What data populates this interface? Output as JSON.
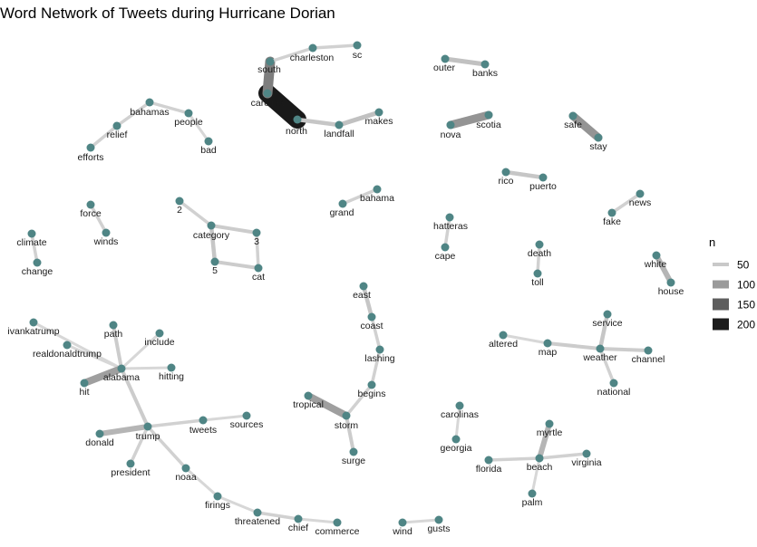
{
  "title": "Word Network of Tweets during Hurricane Dorian",
  "legend": {
    "title": "n",
    "items": [
      {
        "label": "50",
        "value": 50,
        "color": "#c9c9c9"
      },
      {
        "label": "100",
        "value": 100,
        "color": "#9a9a9a"
      },
      {
        "label": "150",
        "value": 150,
        "color": "#5e5e5e"
      },
      {
        "label": "200",
        "value": 200,
        "color": "#1c1c1c"
      }
    ]
  },
  "colors": {
    "node": "#4f8585",
    "text": "#1a1a1a"
  },
  "nodes": [
    {
      "id": "south",
      "label": "south"
    },
    {
      "id": "charleston",
      "label": "charleston"
    },
    {
      "id": "sc",
      "label": "sc"
    },
    {
      "id": "carolina",
      "label": "carolina"
    },
    {
      "id": "north",
      "label": "north"
    },
    {
      "id": "landfall",
      "label": "landfall"
    },
    {
      "id": "makes",
      "label": "makes"
    },
    {
      "id": "outer",
      "label": "outer"
    },
    {
      "id": "banks",
      "label": "banks"
    },
    {
      "id": "nova",
      "label": "nova"
    },
    {
      "id": "scotia",
      "label": "scotia"
    },
    {
      "id": "safe",
      "label": "safe"
    },
    {
      "id": "stay",
      "label": "stay"
    },
    {
      "id": "bahamas",
      "label": "bahamas"
    },
    {
      "id": "people",
      "label": "people"
    },
    {
      "id": "bad",
      "label": "bad"
    },
    {
      "id": "relief",
      "label": "relief"
    },
    {
      "id": "efforts",
      "label": "efforts"
    },
    {
      "id": "rico",
      "label": "rico"
    },
    {
      "id": "puerto",
      "label": "puerto"
    },
    {
      "id": "news",
      "label": "news"
    },
    {
      "id": "fake",
      "label": "fake"
    },
    {
      "id": "bahama",
      "label": "bahama"
    },
    {
      "id": "grand",
      "label": "grand"
    },
    {
      "id": "force",
      "label": "force"
    },
    {
      "id": "winds",
      "label": "winds"
    },
    {
      "id": "2",
      "label": "2"
    },
    {
      "id": "category",
      "label": "category"
    },
    {
      "id": "3",
      "label": "3"
    },
    {
      "id": "5",
      "label": "5"
    },
    {
      "id": "cat",
      "label": "cat"
    },
    {
      "id": "climate",
      "label": "climate"
    },
    {
      "id": "change",
      "label": "change"
    },
    {
      "id": "hatteras",
      "label": "hatteras"
    },
    {
      "id": "cape",
      "label": "cape"
    },
    {
      "id": "death",
      "label": "death"
    },
    {
      "id": "toll",
      "label": "toll"
    },
    {
      "id": "white",
      "label": "white"
    },
    {
      "id": "house",
      "label": "house"
    },
    {
      "id": "east",
      "label": "east"
    },
    {
      "id": "coast",
      "label": "coast"
    },
    {
      "id": "lashing",
      "label": "lashing"
    },
    {
      "id": "begins",
      "label": "begins"
    },
    {
      "id": "tropical",
      "label": "tropical"
    },
    {
      "id": "storm",
      "label": "storm"
    },
    {
      "id": "surge",
      "label": "surge"
    },
    {
      "id": "ivankatrump",
      "label": "ivankatrump"
    },
    {
      "id": "realdonaldtrump",
      "label": "realdonaldtrump"
    },
    {
      "id": "path",
      "label": "path"
    },
    {
      "id": "include",
      "label": "include"
    },
    {
      "id": "alabama",
      "label": "alabama"
    },
    {
      "id": "hitting",
      "label": "hitting"
    },
    {
      "id": "hit",
      "label": "hit"
    },
    {
      "id": "trump",
      "label": "trump"
    },
    {
      "id": "tweets",
      "label": "tweets"
    },
    {
      "id": "sources",
      "label": "sources"
    },
    {
      "id": "donald",
      "label": "donald"
    },
    {
      "id": "president",
      "label": "president"
    },
    {
      "id": "noaa",
      "label": "noaa"
    },
    {
      "id": "firings",
      "label": "firings"
    },
    {
      "id": "threatened",
      "label": "threatened"
    },
    {
      "id": "chief",
      "label": "chief"
    },
    {
      "id": "commerce",
      "label": "commerce"
    },
    {
      "id": "wind",
      "label": "wind"
    },
    {
      "id": "gusts",
      "label": "gusts"
    },
    {
      "id": "service",
      "label": "service"
    },
    {
      "id": "altered",
      "label": "altered"
    },
    {
      "id": "map",
      "label": "map"
    },
    {
      "id": "weather",
      "label": "weather"
    },
    {
      "id": "channel",
      "label": "channel"
    },
    {
      "id": "national",
      "label": "national"
    },
    {
      "id": "carolinas",
      "label": "carolinas"
    },
    {
      "id": "georgia",
      "label": "georgia"
    },
    {
      "id": "myrtle",
      "label": "myrtle"
    },
    {
      "id": "florida",
      "label": "florida"
    },
    {
      "id": "beach",
      "label": "beach"
    },
    {
      "id": "virginia",
      "label": "virginia"
    },
    {
      "id": "palm",
      "label": "palm"
    }
  ],
  "edges": [
    {
      "from": "carolina",
      "to": "north",
      "n": 210
    },
    {
      "from": "south",
      "to": "carolina",
      "n": 120
    },
    {
      "from": "south",
      "to": "charleston",
      "n": 45
    },
    {
      "from": "charleston",
      "to": "sc",
      "n": 45
    },
    {
      "from": "north",
      "to": "landfall",
      "n": 55
    },
    {
      "from": "landfall",
      "to": "makes",
      "n": 60
    },
    {
      "from": "outer",
      "to": "banks",
      "n": 60
    },
    {
      "from": "nova",
      "to": "scotia",
      "n": 100
    },
    {
      "from": "safe",
      "to": "stay",
      "n": 100
    },
    {
      "from": "bahamas",
      "to": "people",
      "n": 45
    },
    {
      "from": "people",
      "to": "bad",
      "n": 40
    },
    {
      "from": "bahamas",
      "to": "relief",
      "n": 45
    },
    {
      "from": "relief",
      "to": "efforts",
      "n": 45
    },
    {
      "from": "rico",
      "to": "puerto",
      "n": 55
    },
    {
      "from": "news",
      "to": "fake",
      "n": 45
    },
    {
      "from": "bahama",
      "to": "grand",
      "n": 45
    },
    {
      "from": "force",
      "to": "winds",
      "n": 45
    },
    {
      "from": "2",
      "to": "category",
      "n": 45
    },
    {
      "from": "category",
      "to": "3",
      "n": 50
    },
    {
      "from": "category",
      "to": "5",
      "n": 55
    },
    {
      "from": "3",
      "to": "cat",
      "n": 45
    },
    {
      "from": "5",
      "to": "cat",
      "n": 50
    },
    {
      "from": "climate",
      "to": "change",
      "n": 45
    },
    {
      "from": "hatteras",
      "to": "cape",
      "n": 45
    },
    {
      "from": "death",
      "to": "toll",
      "n": 45
    },
    {
      "from": "white",
      "to": "house",
      "n": 70
    },
    {
      "from": "east",
      "to": "coast",
      "n": 55
    },
    {
      "from": "coast",
      "to": "lashing",
      "n": 45
    },
    {
      "from": "lashing",
      "to": "begins",
      "n": 45
    },
    {
      "from": "begins",
      "to": "storm",
      "n": 45
    },
    {
      "from": "tropical",
      "to": "storm",
      "n": 90
    },
    {
      "from": "storm",
      "to": "surge",
      "n": 50
    },
    {
      "from": "ivankatrump",
      "to": "alabama",
      "n": 40
    },
    {
      "from": "realdonaldtrump",
      "to": "alabama",
      "n": 40
    },
    {
      "from": "path",
      "to": "alabama",
      "n": 50
    },
    {
      "from": "include",
      "to": "alabama",
      "n": 40
    },
    {
      "from": "alabama",
      "to": "hitting",
      "n": 40
    },
    {
      "from": "hit",
      "to": "alabama",
      "n": 90
    },
    {
      "from": "alabama",
      "to": "trump",
      "n": 50
    },
    {
      "from": "trump",
      "to": "tweets",
      "n": 45
    },
    {
      "from": "tweets",
      "to": "sources",
      "n": 40
    },
    {
      "from": "donald",
      "to": "trump",
      "n": 70
    },
    {
      "from": "president",
      "to": "trump",
      "n": 45
    },
    {
      "from": "trump",
      "to": "noaa",
      "n": 45
    },
    {
      "from": "noaa",
      "to": "firings",
      "n": 40
    },
    {
      "from": "firings",
      "to": "threatened",
      "n": 40
    },
    {
      "from": "threatened",
      "to": "chief",
      "n": 45
    },
    {
      "from": "chief",
      "to": "commerce",
      "n": 40
    },
    {
      "from": "wind",
      "to": "gusts",
      "n": 40
    },
    {
      "from": "service",
      "to": "weather",
      "n": 55
    },
    {
      "from": "altered",
      "to": "map",
      "n": 40
    },
    {
      "from": "map",
      "to": "weather",
      "n": 50
    },
    {
      "from": "weather",
      "to": "channel",
      "n": 50
    },
    {
      "from": "weather",
      "to": "national",
      "n": 45
    },
    {
      "from": "georgia",
      "to": "carolinas",
      "n": 40
    },
    {
      "from": "myrtle",
      "to": "beach",
      "n": 70
    },
    {
      "from": "florida",
      "to": "beach",
      "n": 45
    },
    {
      "from": "beach",
      "to": "virginia",
      "n": 45
    },
    {
      "from": "palm",
      "to": "beach",
      "n": 40
    }
  ]
}
